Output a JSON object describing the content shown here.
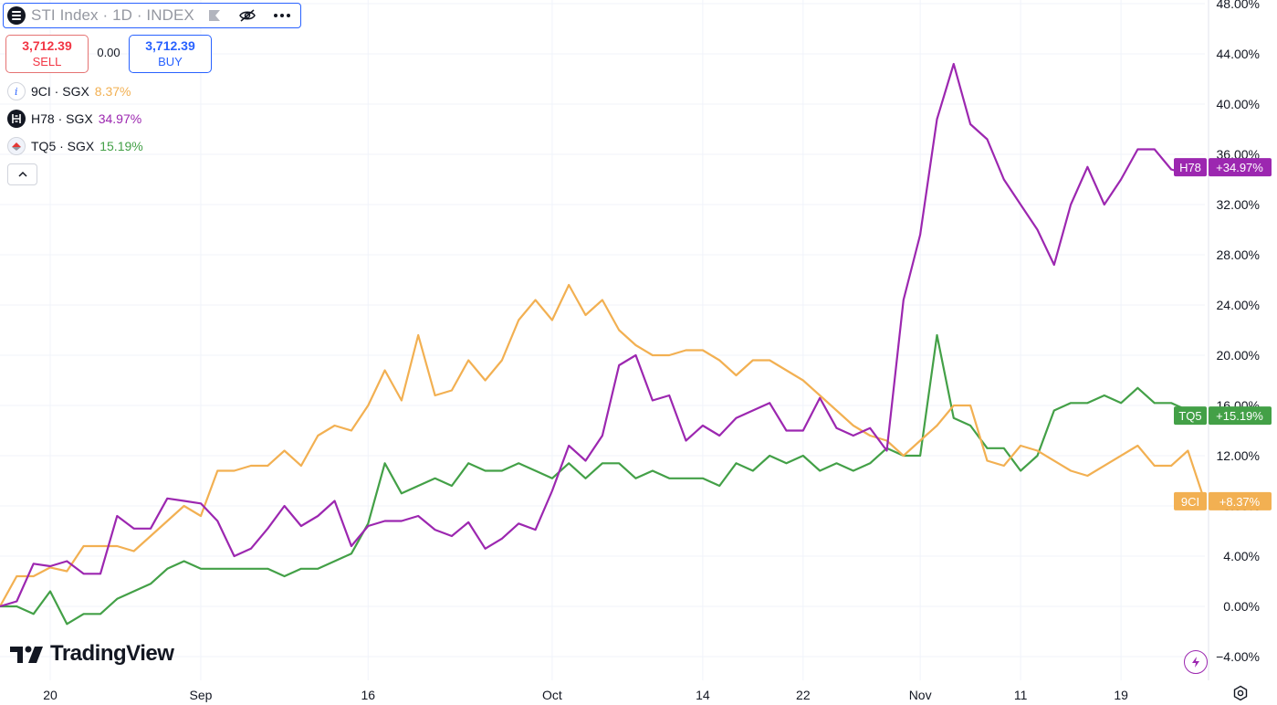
{
  "header": {
    "symbol_title": "STI Index · 1D · INDEX",
    "icons": [
      "menu-icon",
      "flag-icon",
      "eye-off-icon",
      "more-icon"
    ]
  },
  "trade": {
    "sell_price": "3,712.39",
    "sell_label": "SELL",
    "spread": "0.00",
    "buy_price": "3,712.39",
    "buy_label": "BUY"
  },
  "legend": [
    {
      "symbol": "9CI · SGX",
      "value": "8.37%",
      "color": "#f2b052",
      "icon": "info-icon"
    },
    {
      "symbol": "H78 · SGX",
      "value": "34.97%",
      "color": "#9c27b0",
      "icon": "hongkong-land-logo-icon"
    },
    {
      "symbol": "TQ5 · SGX",
      "value": "15.19%",
      "color": "#43a047",
      "icon": "frasers-logo-icon"
    }
  ],
  "branding": {
    "logo_text": "TradingView"
  },
  "chart_data": {
    "type": "line",
    "y_unit": "%",
    "ylim": [
      -5.5,
      48
    ],
    "y_ticks": [
      -4,
      0,
      4,
      8,
      12,
      16,
      20,
      24,
      28,
      32,
      36,
      40,
      44,
      48
    ],
    "y_tick_labels": [
      "−4.00%",
      "0.00%",
      "4.00%",
      "8.00%",
      "12.00%",
      "16.00%",
      "20.00%",
      "24.00%",
      "28.00%",
      "32.00%",
      "36.00%",
      "40.00%",
      "44.00%",
      "48.00%"
    ],
    "x_tick_labels": [
      {
        "label": "20",
        "index": 3
      },
      {
        "label": "Sep",
        "index": 12
      },
      {
        "label": "16",
        "index": 22
      },
      {
        "label": "Oct",
        "index": 33
      },
      {
        "label": "14",
        "index": 42
      },
      {
        "label": "22",
        "index": 48
      },
      {
        "label": "Nov",
        "index": 55
      },
      {
        "label": "11",
        "index": 61
      },
      {
        "label": "19",
        "index": 67
      }
    ],
    "grid": true,
    "series": [
      {
        "name": "9CI",
        "label": "+8.37%",
        "color": "#f2b052",
        "values": [
          0,
          2.4,
          2.4,
          3.1,
          2.8,
          4.8,
          4.8,
          4.8,
          4.4,
          5.6,
          6.8,
          8,
          7.2,
          10.8,
          10.8,
          11.2,
          11.2,
          12.4,
          11.2,
          13.6,
          14.4,
          14,
          16,
          18.8,
          16.4,
          21.6,
          16.8,
          17.2,
          19.6,
          18,
          19.6,
          22.8,
          24.4,
          22.8,
          25.6,
          23.2,
          24.4,
          22,
          20.8,
          20,
          20,
          20.4,
          20.4,
          19.6,
          18.4,
          19.6,
          19.6,
          18.8,
          18,
          16.8,
          15.6,
          14.4,
          13.6,
          13.2,
          12,
          13.2,
          14.4,
          16,
          16,
          11.6,
          11.2,
          12.8,
          12.4,
          null,
          10.8,
          10.4,
          null,
          null,
          12.8,
          11.2,
          11.2,
          12.4,
          8.37
        ]
      },
      {
        "name": "H78",
        "label": "+34.97%",
        "color": "#9c27b0",
        "values": [
          0,
          0.4,
          3.4,
          3.2,
          3.6,
          2.6,
          2.6,
          7.2,
          6.2,
          6.2,
          8.6,
          8.4,
          8.2,
          6.8,
          4.0,
          4.6,
          6.2,
          8.0,
          6.4,
          7.2,
          8.4,
          4.8,
          6.4,
          6.8,
          6.8,
          7.2,
          6.1,
          5.6,
          6.7,
          4.6,
          5.4,
          6.6,
          6.1,
          9.2,
          12.8,
          11.6,
          13.6,
          19.2,
          20.0,
          16.4,
          16.8,
          13.2,
          14.4,
          13.6,
          15.0,
          15.6,
          16.2,
          14.0,
          14.0,
          16.6,
          14.2,
          13.6,
          14.2,
          12.4,
          24.4,
          29.6,
          38.8,
          43.2,
          38.4,
          37.2,
          34.0,
          32.0,
          30.0,
          27.2,
          32.0,
          35.0,
          32.0,
          34.0,
          36.4,
          36.4,
          34.8,
          34.4,
          34.97
        ]
      },
      {
        "name": "TQ5",
        "label": "+15.19%",
        "color": "#43a047",
        "values": [
          0,
          0,
          -0.6,
          1.2,
          -1.4,
          -0.6,
          -0.6,
          0.6,
          1.2,
          1.8,
          3.0,
          3.6,
          3.0,
          3.0,
          3.0,
          3.0,
          3.0,
          2.4,
          3.0,
          3.0,
          3.6,
          4.2,
          6.6,
          11.4,
          9.0,
          9.6,
          10.2,
          9.6,
          11.4,
          10.8,
          10.8,
          11.4,
          10.8,
          10.2,
          11.4,
          10.2,
          11.4,
          11.4,
          10.2,
          10.8,
          10.2,
          10.2,
          10.2,
          9.6,
          11.4,
          10.8,
          12.0,
          11.4,
          12.0,
          10.8,
          11.4,
          10.8,
          11.4,
          12.6,
          12.0,
          12.0,
          21.6,
          15.0,
          14.4,
          12.6,
          12.6,
          10.8,
          12.0,
          15.6,
          16.2,
          16.2,
          16.8,
          16.2,
          17.4,
          16.2,
          16.2,
          15.6,
          15.19
        ]
      }
    ]
  }
}
